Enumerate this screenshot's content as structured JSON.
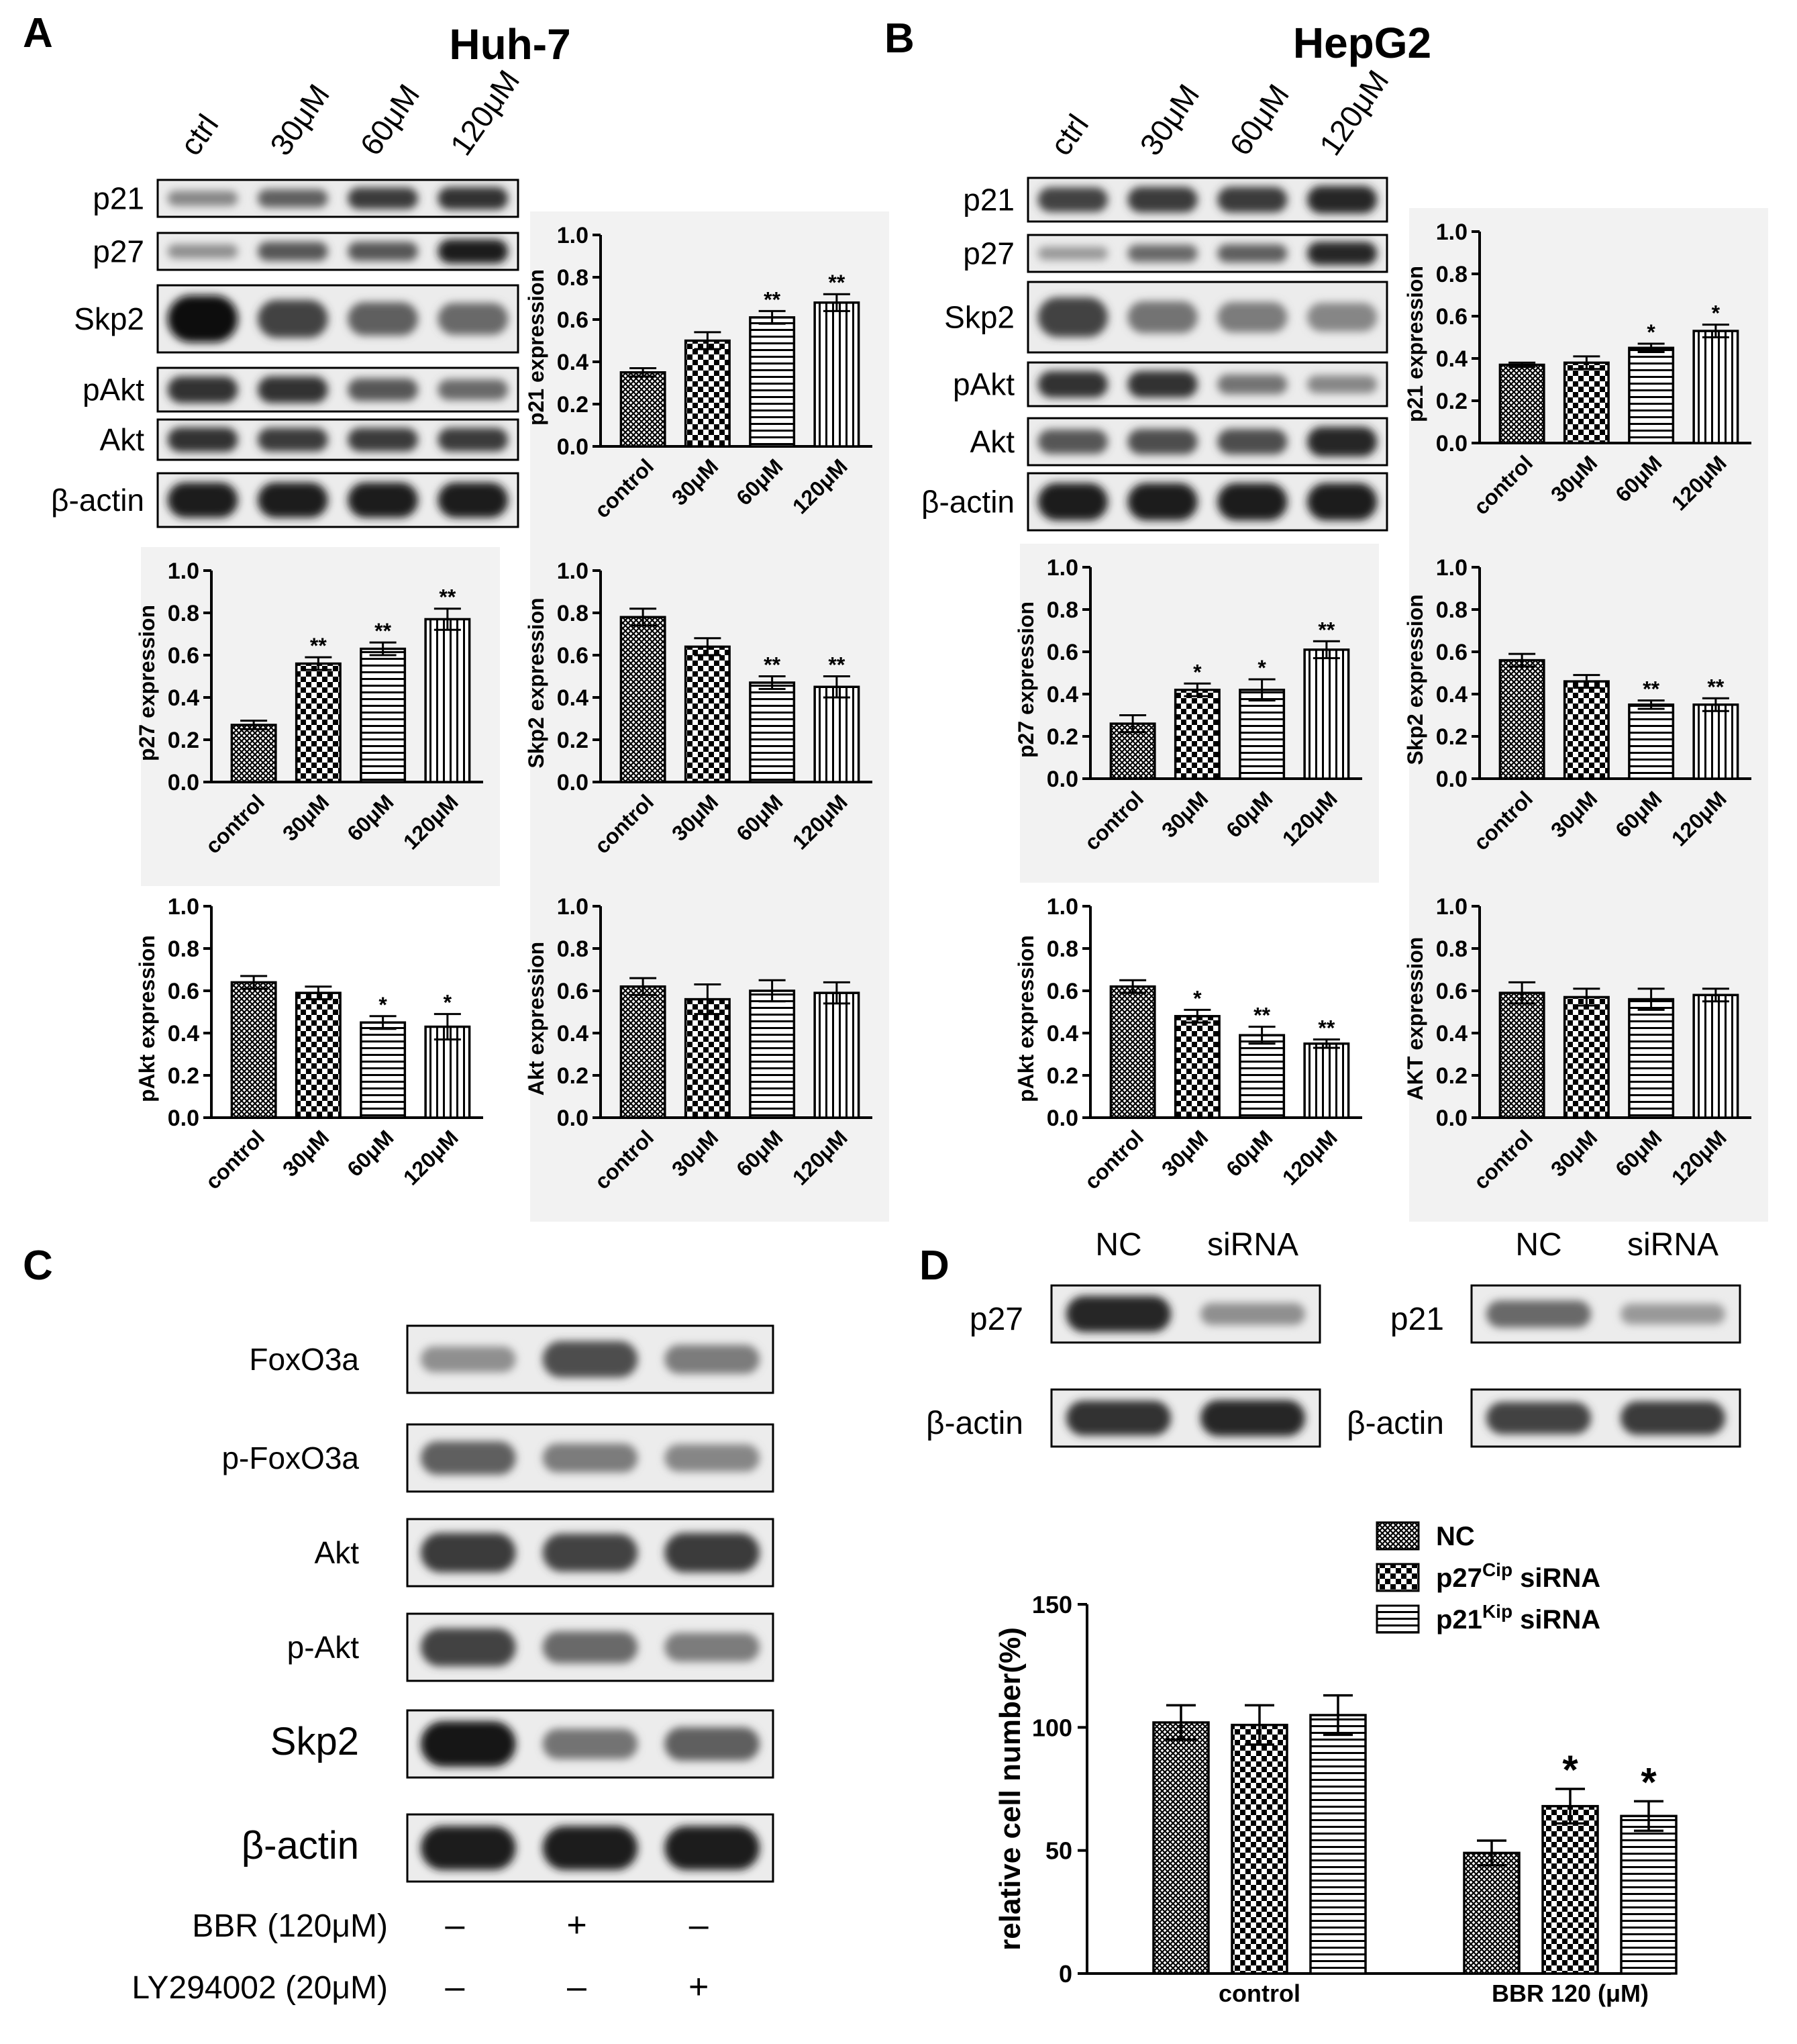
{
  "figure": {
    "panels": {
      "A": {
        "letter": "A",
        "cell_line": "Huh-7",
        "lane_labels": [
          "ctrl",
          "30μM",
          "60μM",
          "120μM"
        ],
        "blot_labels": [
          "p21",
          "p27",
          "Skp2",
          "pAkt",
          "Akt",
          "β-actin"
        ],
        "band_intensity": [
          [
            0.35,
            0.55,
            0.75,
            0.8
          ],
          [
            0.3,
            0.6,
            0.6,
            0.9
          ],
          [
            1.0,
            0.7,
            0.55,
            0.5
          ],
          [
            0.8,
            0.8,
            0.6,
            0.5
          ],
          [
            0.8,
            0.75,
            0.75,
            0.75
          ],
          [
            0.9,
            0.9,
            0.9,
            0.9
          ]
        ]
      },
      "B": {
        "letter": "B",
        "cell_line": "HepG2",
        "lane_labels": [
          "ctrl",
          "30μM",
          "60μM",
          "120μM"
        ],
        "blot_labels": [
          "p21",
          "p27",
          "Skp2",
          "pAkt",
          "Akt",
          "β-actin"
        ],
        "band_intensity": [
          [
            0.7,
            0.75,
            0.75,
            0.85
          ],
          [
            0.25,
            0.5,
            0.55,
            0.85
          ],
          [
            0.7,
            0.45,
            0.4,
            0.35
          ],
          [
            0.8,
            0.8,
            0.45,
            0.35
          ],
          [
            0.6,
            0.65,
            0.65,
            0.85
          ],
          [
            0.9,
            0.9,
            0.9,
            0.9
          ]
        ]
      },
      "C": {
        "letter": "C",
        "blot_labels": [
          "FoxO3a",
          "p-FoxO3a",
          "Akt",
          "p-Akt",
          "Skp2",
          "β-actin"
        ],
        "band_intensity": [
          [
            0.3,
            0.65,
            0.4
          ],
          [
            0.55,
            0.4,
            0.35
          ],
          [
            0.75,
            0.7,
            0.75
          ],
          [
            0.7,
            0.5,
            0.4
          ],
          [
            0.95,
            0.45,
            0.55
          ],
          [
            0.9,
            0.9,
            0.9
          ]
        ],
        "treatments": [
          {
            "label": "BBR (120μM)",
            "signs": [
              "–",
              "+",
              "–"
            ]
          },
          {
            "label": "LY294002 (20μM)",
            "signs": [
              "–",
              "–",
              "+"
            ]
          }
        ]
      },
      "D": {
        "letter": "D",
        "lane_labels": [
          "NC",
          "siRNA"
        ],
        "blots_left": [
          "p27",
          "β-actin"
        ],
        "blots_right": [
          "p21",
          "β-actin"
        ],
        "band_intensity_left": [
          [
            0.85,
            0.3
          ],
          [
            0.8,
            0.85
          ]
        ],
        "band_intensity_right": [
          [
            0.5,
            0.25
          ],
          [
            0.7,
            0.75
          ]
        ]
      }
    }
  },
  "chart_data": [
    {
      "id": "huh7-p21",
      "type": "bar",
      "categories": [
        "control",
        "30μM",
        "60μM",
        "120μM"
      ],
      "values": [
        0.35,
        0.5,
        0.61,
        0.68
      ],
      "errors": [
        0.02,
        0.04,
        0.03,
        0.04
      ],
      "significance": [
        "",
        "",
        "**",
        "**"
      ],
      "ylabel": "p21 expression",
      "ylim": [
        0,
        1.0
      ],
      "yticks": [
        "0.0",
        "0.2",
        "0.4",
        "0.6",
        "0.8",
        "1.0"
      ],
      "patterns": [
        "fine",
        "checker",
        "hlines",
        "vlines"
      ]
    },
    {
      "id": "huh7-p27",
      "type": "bar",
      "categories": [
        "control",
        "30μM",
        "60μM",
        "120μM"
      ],
      "values": [
        0.27,
        0.56,
        0.63,
        0.77
      ],
      "errors": [
        0.02,
        0.03,
        0.03,
        0.05
      ],
      "significance": [
        "",
        "**",
        "**",
        "**"
      ],
      "ylabel": "p27 expression",
      "ylim": [
        0,
        1.0
      ],
      "yticks": [
        "0.0",
        "0.2",
        "0.4",
        "0.6",
        "0.8",
        "1.0"
      ],
      "patterns": [
        "fine",
        "checker",
        "hlines",
        "vlines"
      ]
    },
    {
      "id": "huh7-skp2",
      "type": "bar",
      "categories": [
        "control",
        "30μM",
        "60μM",
        "120μM"
      ],
      "values": [
        0.78,
        0.64,
        0.47,
        0.45
      ],
      "errors": [
        0.04,
        0.04,
        0.03,
        0.05
      ],
      "significance": [
        "",
        "",
        "**",
        "**"
      ],
      "ylabel": "Skp2 expression",
      "ylim": [
        0,
        1.0
      ],
      "yticks": [
        "0.0",
        "0.2",
        "0.4",
        "0.6",
        "0.8",
        "1.0"
      ],
      "patterns": [
        "fine",
        "checker",
        "hlines",
        "vlines"
      ]
    },
    {
      "id": "huh7-pakt",
      "type": "bar",
      "categories": [
        "control",
        "30μM",
        "60μM",
        "120μM"
      ],
      "values": [
        0.64,
        0.59,
        0.45,
        0.43
      ],
      "errors": [
        0.03,
        0.03,
        0.03,
        0.06
      ],
      "significance": [
        "",
        "",
        "*",
        "*"
      ],
      "ylabel": "pAkt expression",
      "ylim": [
        0,
        1.0
      ],
      "yticks": [
        "0.0",
        "0.2",
        "0.4",
        "0.6",
        "0.8",
        "1.0"
      ],
      "patterns": [
        "fine",
        "checker",
        "hlines",
        "vlines"
      ]
    },
    {
      "id": "huh7-akt",
      "type": "bar",
      "categories": [
        "control",
        "30μM",
        "60μM",
        "120μM"
      ],
      "values": [
        0.62,
        0.56,
        0.6,
        0.59
      ],
      "errors": [
        0.04,
        0.07,
        0.05,
        0.05
      ],
      "significance": [
        "",
        "",
        "",
        ""
      ],
      "ylabel": "Akt expression",
      "ylim": [
        0,
        1.0
      ],
      "yticks": [
        "0.0",
        "0.2",
        "0.4",
        "0.6",
        "0.8",
        "1.0"
      ],
      "patterns": [
        "fine",
        "checker",
        "hlines",
        "vlines"
      ]
    },
    {
      "id": "hepg2-p21",
      "type": "bar",
      "categories": [
        "control",
        "30μM",
        "60μM",
        "120μM"
      ],
      "values": [
        0.37,
        0.38,
        0.45,
        0.53
      ],
      "errors": [
        0.01,
        0.03,
        0.02,
        0.03
      ],
      "significance": [
        "",
        "",
        "*",
        "*"
      ],
      "ylabel": "p21 expression",
      "ylim": [
        0,
        1.0
      ],
      "yticks": [
        "0.0",
        "0.2",
        "0.4",
        "0.6",
        "0.8",
        "1.0"
      ],
      "patterns": [
        "fine",
        "checker",
        "hlines",
        "vlines"
      ]
    },
    {
      "id": "hepg2-p27",
      "type": "bar",
      "categories": [
        "control",
        "30μM",
        "60μM",
        "120μM"
      ],
      "values": [
        0.26,
        0.42,
        0.42,
        0.61
      ],
      "errors": [
        0.04,
        0.03,
        0.05,
        0.04
      ],
      "significance": [
        "",
        "*",
        "*",
        "**"
      ],
      "ylabel": "p27 expression",
      "ylim": [
        0,
        1.0
      ],
      "yticks": [
        "0.0",
        "0.2",
        "0.4",
        "0.6",
        "0.8",
        "1.0"
      ],
      "patterns": [
        "fine",
        "checker",
        "hlines",
        "vlines"
      ]
    },
    {
      "id": "hepg2-skp2",
      "type": "bar",
      "categories": [
        "control",
        "30μM",
        "60μM",
        "120μM"
      ],
      "values": [
        0.56,
        0.46,
        0.35,
        0.35
      ],
      "errors": [
        0.03,
        0.03,
        0.02,
        0.03
      ],
      "significance": [
        "",
        "",
        "**",
        "**"
      ],
      "ylabel": "Skp2 expression",
      "ylim": [
        0,
        1.0
      ],
      "yticks": [
        "0.0",
        "0.2",
        "0.4",
        "0.6",
        "0.8",
        "1.0"
      ],
      "patterns": [
        "fine",
        "checker",
        "hlines",
        "vlines"
      ]
    },
    {
      "id": "hepg2-pakt",
      "type": "bar",
      "categories": [
        "control",
        "30μM",
        "60μM",
        "120μM"
      ],
      "values": [
        0.62,
        0.48,
        0.39,
        0.35
      ],
      "errors": [
        0.03,
        0.03,
        0.04,
        0.02
      ],
      "significance": [
        "",
        "*",
        "**",
        "**"
      ],
      "ylabel": "pAkt expression",
      "ylim": [
        0,
        1.0
      ],
      "yticks": [
        "0.0",
        "0.2",
        "0.4",
        "0.6",
        "0.8",
        "1.0"
      ],
      "patterns": [
        "fine",
        "checker",
        "hlines",
        "vlines"
      ]
    },
    {
      "id": "hepg2-akt",
      "type": "bar",
      "categories": [
        "control",
        "30μM",
        "60μM",
        "120μM"
      ],
      "values": [
        0.59,
        0.57,
        0.56,
        0.58
      ],
      "errors": [
        0.05,
        0.04,
        0.05,
        0.03
      ],
      "significance": [
        "",
        "",
        "",
        ""
      ],
      "ylabel": "AKT expression",
      "ylim": [
        0,
        1.0
      ],
      "yticks": [
        "0.0",
        "0.2",
        "0.4",
        "0.6",
        "0.8",
        "1.0"
      ],
      "patterns": [
        "fine",
        "checker",
        "hlines",
        "vlines"
      ]
    },
    {
      "id": "d-cellnumber",
      "type": "bar",
      "categories": [
        "control",
        "BBR 120 (μM)"
      ],
      "series": [
        {
          "name": "NC",
          "values": [
            102,
            49
          ],
          "errors": [
            7,
            5
          ],
          "significance": [
            "",
            ""
          ],
          "pattern": "fine"
        },
        {
          "name": "p27",
          "sup": "Cip",
          "suffix": " siRNA",
          "values": [
            101,
            68
          ],
          "errors": [
            8,
            7
          ],
          "significance": [
            "",
            "*"
          ],
          "pattern": "checker"
        },
        {
          "name": "p21",
          "sup": "Kip",
          "suffix": " siRNA",
          "values": [
            105,
            64
          ],
          "errors": [
            8,
            6
          ],
          "significance": [
            "",
            "*"
          ],
          "pattern": "hlines"
        }
      ],
      "ylabel": "relative cell number(%)",
      "ylim": [
        0,
        150
      ],
      "yticks": [
        "0",
        "50",
        "100",
        "150"
      ]
    }
  ]
}
